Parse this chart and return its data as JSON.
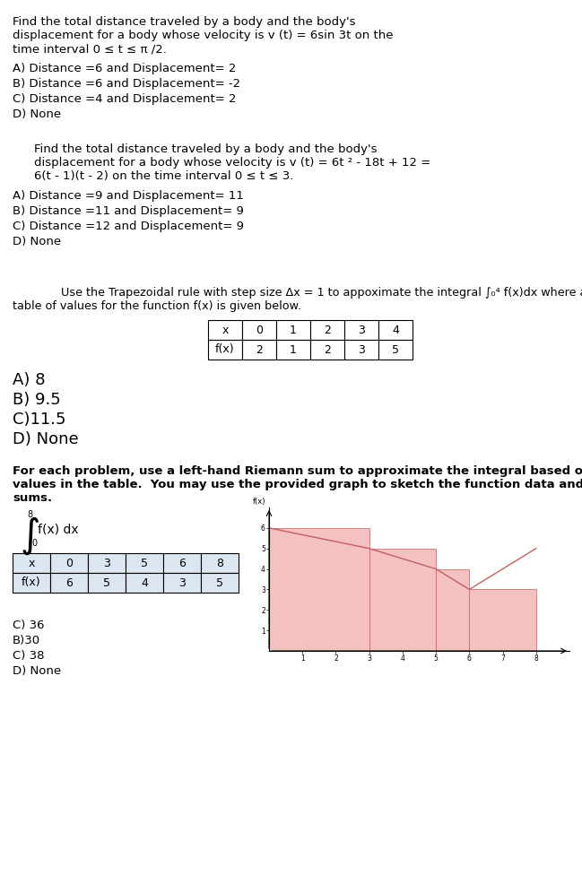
{
  "q1_line1": "Find the total distance traveled by a body and the body's",
  "q1_line2": "displacement for a body whose velocity is v (t) = 6sin 3t on the",
  "q1_line3": "time interval 0 ≤ t ≤ π /2.",
  "q1_options": [
    "A) Distance =6 and Displacement= 2",
    "B) Distance =6 and Displacement= -2",
    "C) Distance =4 and Displacement= 2",
    "D) None"
  ],
  "q2_line1": "Find the total distance traveled by a body and the body's",
  "q2_line2": "displacement for a body whose velocity is v (t) = 6t ² - 18t + 12 =",
  "q2_line3": "6(t - 1)(t - 2) on the time interval 0 ≤ t ≤ 3.",
  "q2_options": [
    "A) Distance =9 and Displacement= 11",
    "B) Distance =11 and Displacement= 9",
    "C) Distance =12 and Displacement= 9",
    "D) None"
  ],
  "q3_line1": "Use the Trapezoidal rule with step size Δx = 1 to appoximate the integral ∫₀⁴ f(x)dx where a",
  "q3_line2": "table of values for the function f(x) is given below.",
  "q3_table_x": [
    "x",
    "0",
    "1",
    "2",
    "3",
    "4"
  ],
  "q3_table_fx": [
    "f(x)",
    "2",
    "1",
    "2",
    "3",
    "5"
  ],
  "q3_options": [
    "A) 8",
    "B) 9.5",
    "C)11.5",
    "D) None"
  ],
  "q4_line1": "For each problem, use a left-hand Riemann sum to approximate the integral based off of the",
  "q4_line2": "values in the table.  You may use the provided graph to sketch the function data and Riemann",
  "q4_line3": "sums.",
  "q4_table_x": [
    "x",
    "0",
    "3",
    "5",
    "6",
    "8"
  ],
  "q4_table_fx": [
    "f(x)",
    "6",
    "5",
    "4",
    "3",
    "5"
  ],
  "q4_options": [
    "C) 36",
    "B)30",
    "C) 38",
    "D) None"
  ],
  "graph_bar_color": "#f5c0c0",
  "graph_line_color": "#c06060",
  "bg_color": "#ffffff",
  "text_color": "#000000",
  "fs": 9.5
}
